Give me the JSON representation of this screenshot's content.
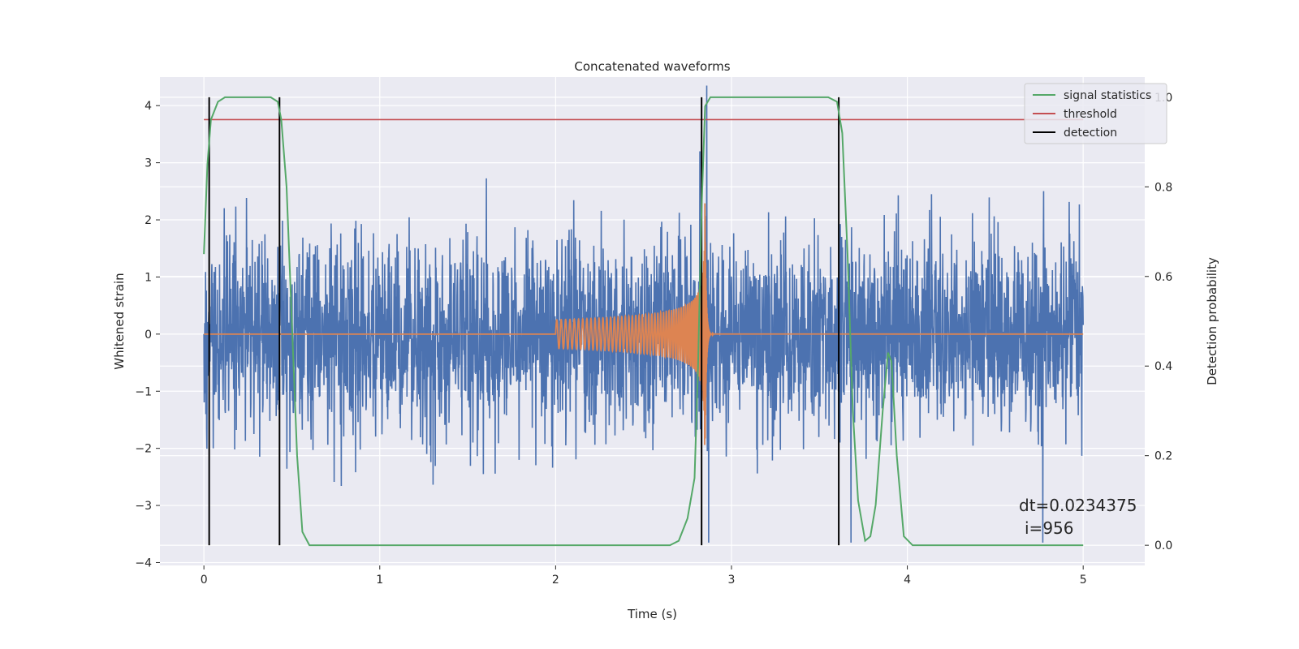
{
  "chart_data": {
    "type": "line",
    "title": "Concatenated waveforms",
    "xlabel": "Time (s)",
    "ylabel": "Whitened strain",
    "ylabel_right": "Detection probability",
    "xlim": [
      -0.25,
      5.35
    ],
    "ylim": [
      -4.05,
      4.5
    ],
    "ylim_right": [
      -0.045,
      1.045
    ],
    "x_ticks": [
      0,
      1,
      2,
      3,
      4,
      5
    ],
    "y_ticks": [
      -4,
      -3,
      -2,
      -1,
      0,
      1,
      2,
      3,
      4
    ],
    "y_ticks_right": [
      0.0,
      0.2,
      0.4,
      0.6,
      0.8,
      1.0
    ],
    "x_tick_labels": [
      "0",
      "1",
      "2",
      "3",
      "4",
      "5"
    ],
    "y_tick_labels": [
      "−4",
      "−3",
      "−2",
      "−1",
      "0",
      "1",
      "2",
      "3",
      "4"
    ],
    "y_tick_labels_right": [
      "0.0",
      "0.2",
      "0.4",
      "0.6",
      "0.8",
      "1.0"
    ],
    "grid": true,
    "legend_position": "top-right",
    "legend": [
      {
        "name": "signal statistics",
        "color": "#55a868"
      },
      {
        "name": "threshold",
        "color": "#c44e52"
      },
      {
        "name": "detection",
        "color": "#000000"
      }
    ],
    "annotation": {
      "line1": "dt=0.0234375",
      "line2": "i=956"
    },
    "strain": {
      "color": "#4c72b0",
      "x_range": [
        0,
        5
      ],
      "typical_abs_peak": 2.0,
      "max": 4.35,
      "min": -3.65,
      "note_spikes": [
        {
          "x": 2.82,
          "y": 3.2
        },
        {
          "x": 2.86,
          "y": 4.35
        },
        {
          "x": 2.87,
          "y": -3.65
        },
        {
          "x": 3.68,
          "y": -3.65
        },
        {
          "x": 4.77,
          "y": -3.65
        }
      ]
    },
    "chirp": {
      "color": "#dd8452",
      "x_start": 2.0,
      "x_merger": 2.85,
      "x_end": 5.0,
      "amp_start": 0.25,
      "amp_merger": 2.3
    },
    "threshold": {
      "value": 0.95,
      "x_range": [
        0,
        5
      ],
      "axis": "right"
    },
    "detections": [
      0.03,
      0.43,
      2.83,
      3.61
    ],
    "signal_statistics": {
      "axis": "right",
      "points": [
        [
          0.0,
          0.65
        ],
        [
          0.02,
          0.85
        ],
        [
          0.04,
          0.95
        ],
        [
          0.08,
          0.99
        ],
        [
          0.12,
          1.0
        ],
        [
          0.38,
          1.0
        ],
        [
          0.42,
          0.99
        ],
        [
          0.44,
          0.95
        ],
        [
          0.47,
          0.8
        ],
        [
          0.5,
          0.5
        ],
        [
          0.53,
          0.2
        ],
        [
          0.56,
          0.03
        ],
        [
          0.6,
          0.0
        ],
        [
          2.65,
          0.0
        ],
        [
          2.7,
          0.01
        ],
        [
          2.75,
          0.06
        ],
        [
          2.79,
          0.15
        ],
        [
          2.81,
          0.4
        ],
        [
          2.83,
          0.75
        ],
        [
          2.85,
          0.98
        ],
        [
          2.88,
          1.0
        ],
        [
          3.55,
          1.0
        ],
        [
          3.6,
          0.99
        ],
        [
          3.63,
          0.92
        ],
        [
          3.66,
          0.65
        ],
        [
          3.69,
          0.3
        ],
        [
          3.72,
          0.1
        ],
        [
          3.76,
          0.01
        ],
        [
          3.79,
          0.02
        ],
        [
          3.82,
          0.09
        ],
        [
          3.86,
          0.3
        ],
        [
          3.89,
          0.43
        ],
        [
          3.91,
          0.41
        ],
        [
          3.94,
          0.2
        ],
        [
          3.98,
          0.02
        ],
        [
          4.03,
          0.0
        ],
        [
          4.9,
          0.0
        ],
        [
          5.0,
          0.0
        ]
      ]
    }
  }
}
